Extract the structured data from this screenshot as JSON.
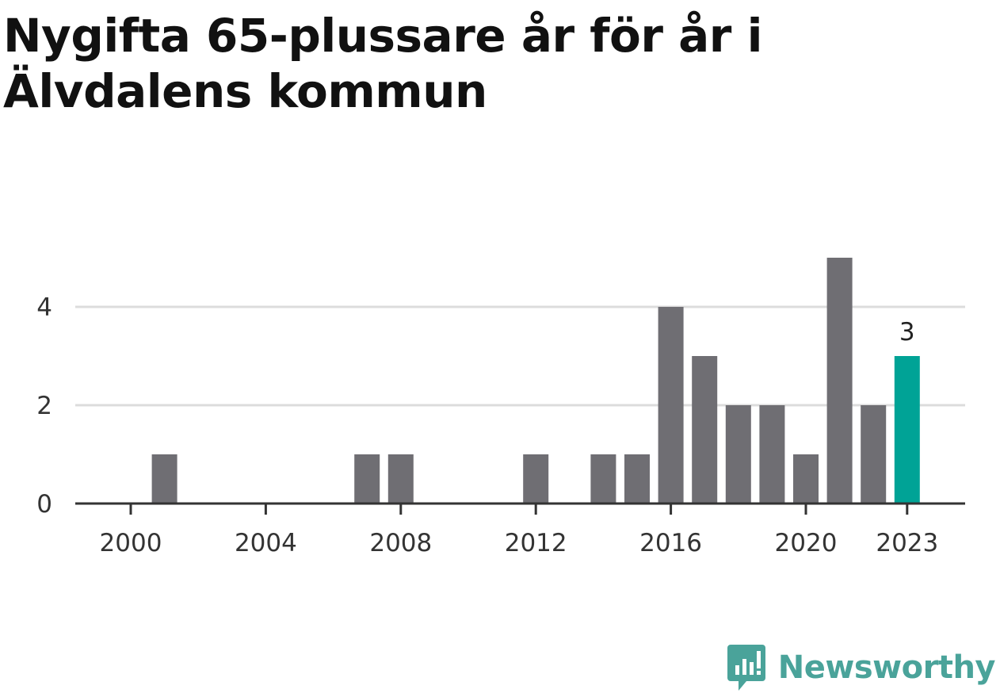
{
  "title": "Nygifta 65-plussare år för år i Älvdalens kommun",
  "brand": {
    "name": "Newsworthy",
    "color": "#4aa39a",
    "icon": "bar-chart-speech-bubble-icon"
  },
  "chart_data": {
    "type": "bar",
    "title": "Nygifta 65-plussare år för år i Älvdalens kommun",
    "xlabel": "",
    "ylabel": "",
    "categories": [
      2000,
      2001,
      2002,
      2003,
      2004,
      2005,
      2006,
      2007,
      2008,
      2009,
      2010,
      2011,
      2012,
      2013,
      2014,
      2015,
      2016,
      2017,
      2018,
      2019,
      2020,
      2021,
      2022,
      2023
    ],
    "values": [
      0,
      1,
      0,
      0,
      0,
      0,
      0,
      1,
      1,
      0,
      0,
      0,
      1,
      0,
      1,
      1,
      4,
      3,
      2,
      2,
      1,
      5,
      2,
      3
    ],
    "ylim": [
      0,
      5
    ],
    "yticks": [
      0,
      2,
      4
    ],
    "xticks": [
      2000,
      2004,
      2008,
      2012,
      2016,
      2020,
      2023
    ],
    "grid": true,
    "bar_color": "#6f6e73",
    "highlight_color": "#00a396",
    "highlight": {
      "category": 2023,
      "label": "3"
    }
  }
}
